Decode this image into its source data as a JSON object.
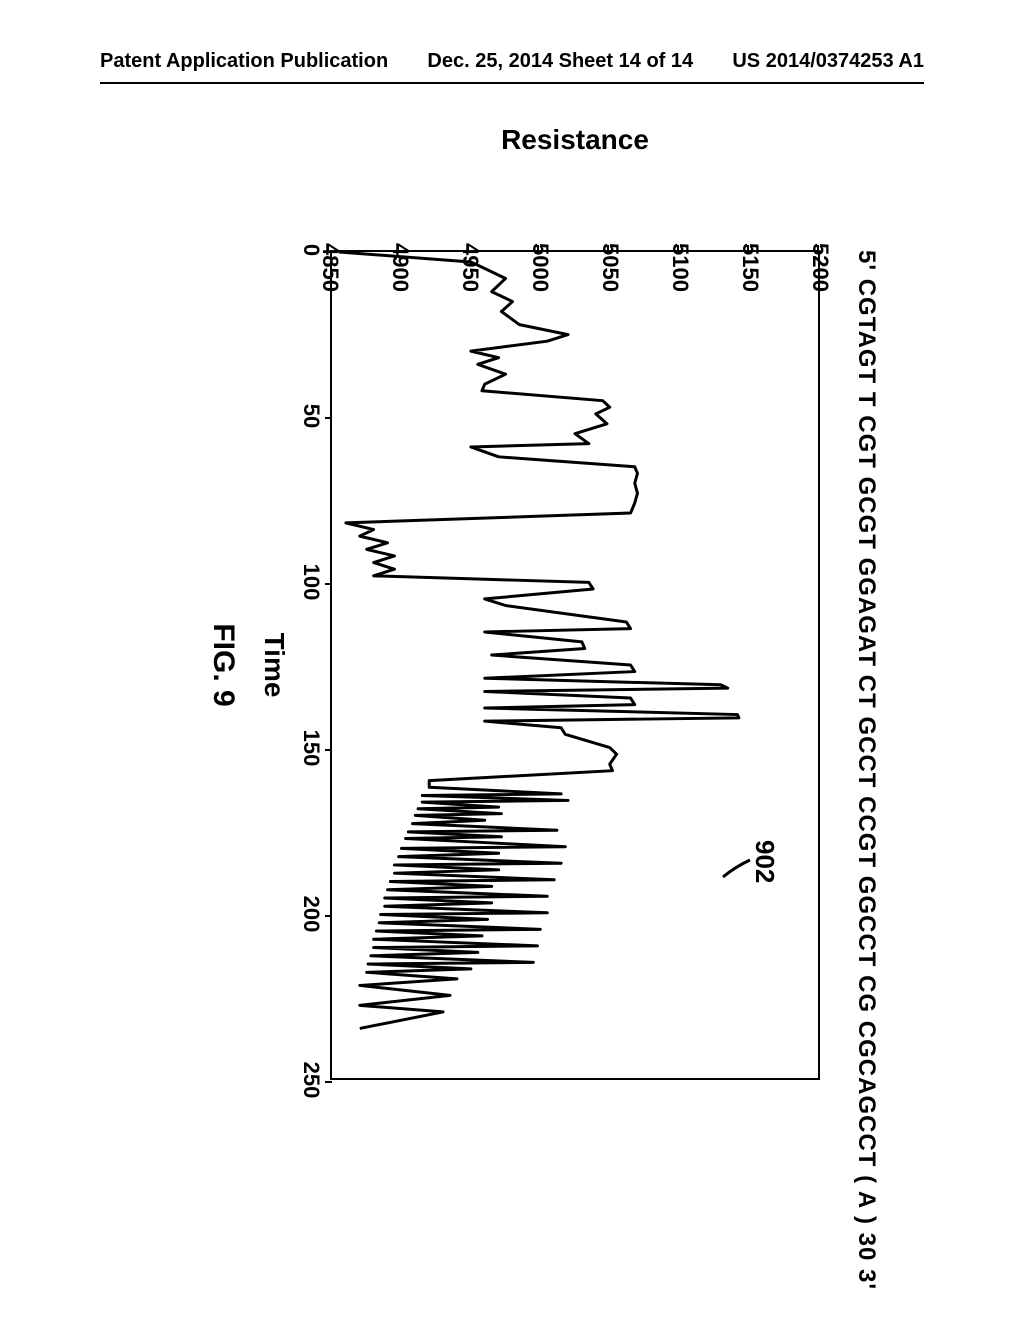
{
  "header": {
    "left": "Patent Application Publication",
    "center": "Dec. 25, 2014  Sheet 14 of 14",
    "right": "US 2014/0374253 A1"
  },
  "figure": {
    "sequence": "5'   CGTAGT T CGT GCGT GGAGAT CT GCCT CCGT GGCCT CG   CGCAGCCT  ( A ) 30  3'",
    "callout_label": "902",
    "chart": {
      "type": "line",
      "xlabel": "Time",
      "ylabel": "Resistance",
      "xlim": [
        0,
        250
      ],
      "ylim": [
        4850,
        5200
      ],
      "xtick_step": 50,
      "ytick_step": 50,
      "xticks": [
        0,
        50,
        100,
        150,
        200,
        250
      ],
      "yticks": [
        4850,
        4900,
        4950,
        5000,
        5050,
        5100,
        5150,
        5200
      ],
      "line_color": "#000000",
      "line_width": 3,
      "background_color": "#ffffff",
      "series": [
        [
          0,
          4855
        ],
        [
          3,
          4950
        ],
        [
          5,
          4960
        ],
        [
          8,
          4975
        ],
        [
          12,
          4965
        ],
        [
          15,
          4980
        ],
        [
          18,
          4972
        ],
        [
          22,
          4985
        ],
        [
          25,
          5020
        ],
        [
          27,
          5005
        ],
        [
          30,
          4950
        ],
        [
          32,
          4970
        ],
        [
          34,
          4955
        ],
        [
          37,
          4975
        ],
        [
          40,
          4960
        ],
        [
          42,
          4958
        ],
        [
          45,
          5045
        ],
        [
          47,
          5050
        ],
        [
          49,
          5040
        ],
        [
          52,
          5048
        ],
        [
          55,
          5025
        ],
        [
          58,
          5035
        ],
        [
          59,
          4950
        ],
        [
          62,
          4970
        ],
        [
          65,
          5068
        ],
        [
          67,
          5070
        ],
        [
          70,
          5068
        ],
        [
          73,
          5070
        ],
        [
          76,
          5068
        ],
        [
          79,
          5065
        ],
        [
          82,
          4860
        ],
        [
          84,
          4880
        ],
        [
          86,
          4870
        ],
        [
          88,
          4890
        ],
        [
          90,
          4875
        ],
        [
          92,
          4895
        ],
        [
          94,
          4880
        ],
        [
          96,
          4895
        ],
        [
          98,
          4880
        ],
        [
          100,
          5035
        ],
        [
          102,
          5038
        ],
        [
          105,
          4960
        ],
        [
          107,
          4975
        ],
        [
          112,
          5062
        ],
        [
          114,
          5065
        ],
        [
          115,
          4960
        ],
        [
          118,
          5030
        ],
        [
          120,
          5032
        ],
        [
          122,
          4965
        ],
        [
          125,
          5065
        ],
        [
          127,
          5068
        ],
        [
          129,
          4960
        ],
        [
          131,
          5130
        ],
        [
          132,
          5135
        ],
        [
          133,
          4960
        ],
        [
          135,
          5065
        ],
        [
          137,
          5068
        ],
        [
          138,
          4960
        ],
        [
          140,
          5142
        ],
        [
          141,
          5143
        ],
        [
          142,
          4960
        ],
        [
          144,
          5015
        ],
        [
          146,
          5018
        ],
        [
          150,
          5050
        ],
        [
          152,
          5055
        ],
        [
          155,
          5050
        ],
        [
          157,
          5052
        ],
        [
          160,
          4920
        ],
        [
          162,
          4920
        ],
        [
          164,
          5015
        ],
        [
          164.5,
          4915
        ],
        [
          166,
          5020
        ],
        [
          166.5,
          4915
        ],
        [
          168,
          4970
        ],
        [
          168.5,
          4912
        ],
        [
          170,
          4972
        ],
        [
          170.5,
          4910
        ],
        [
          172,
          4960
        ],
        [
          173,
          4908
        ],
        [
          175,
          5012
        ],
        [
          175.5,
          4905
        ],
        [
          177,
          4972
        ],
        [
          177.5,
          4903
        ],
        [
          180,
          5018
        ],
        [
          180.5,
          4900
        ],
        [
          182,
          4970
        ],
        [
          183,
          4898
        ],
        [
          185,
          5015
        ],
        [
          185.5,
          4895
        ],
        [
          187,
          4970
        ],
        [
          188,
          4895
        ],
        [
          190,
          5010
        ],
        [
          190.5,
          4892
        ],
        [
          192,
          4965
        ],
        [
          193,
          4890
        ],
        [
          195,
          5005
        ],
        [
          195.5,
          4888
        ],
        [
          197,
          4965
        ],
        [
          198,
          4888
        ],
        [
          200,
          5005
        ],
        [
          200.5,
          4885
        ],
        [
          202,
          4962
        ],
        [
          203,
          4884
        ],
        [
          205,
          5000
        ],
        [
          205.5,
          4882
        ],
        [
          207,
          4958
        ],
        [
          208,
          4880
        ],
        [
          210,
          4998
        ],
        [
          210.5,
          4880
        ],
        [
          212,
          4955
        ],
        [
          213,
          4878
        ],
        [
          215,
          4995
        ],
        [
          215.5,
          4876
        ],
        [
          217,
          4950
        ],
        [
          218,
          4875
        ],
        [
          220,
          4940
        ],
        [
          222,
          4870
        ],
        [
          225,
          4935
        ],
        [
          228,
          4870
        ],
        [
          230,
          4930
        ],
        [
          235,
          4870
        ]
      ]
    },
    "caption": "FIG. 9"
  }
}
